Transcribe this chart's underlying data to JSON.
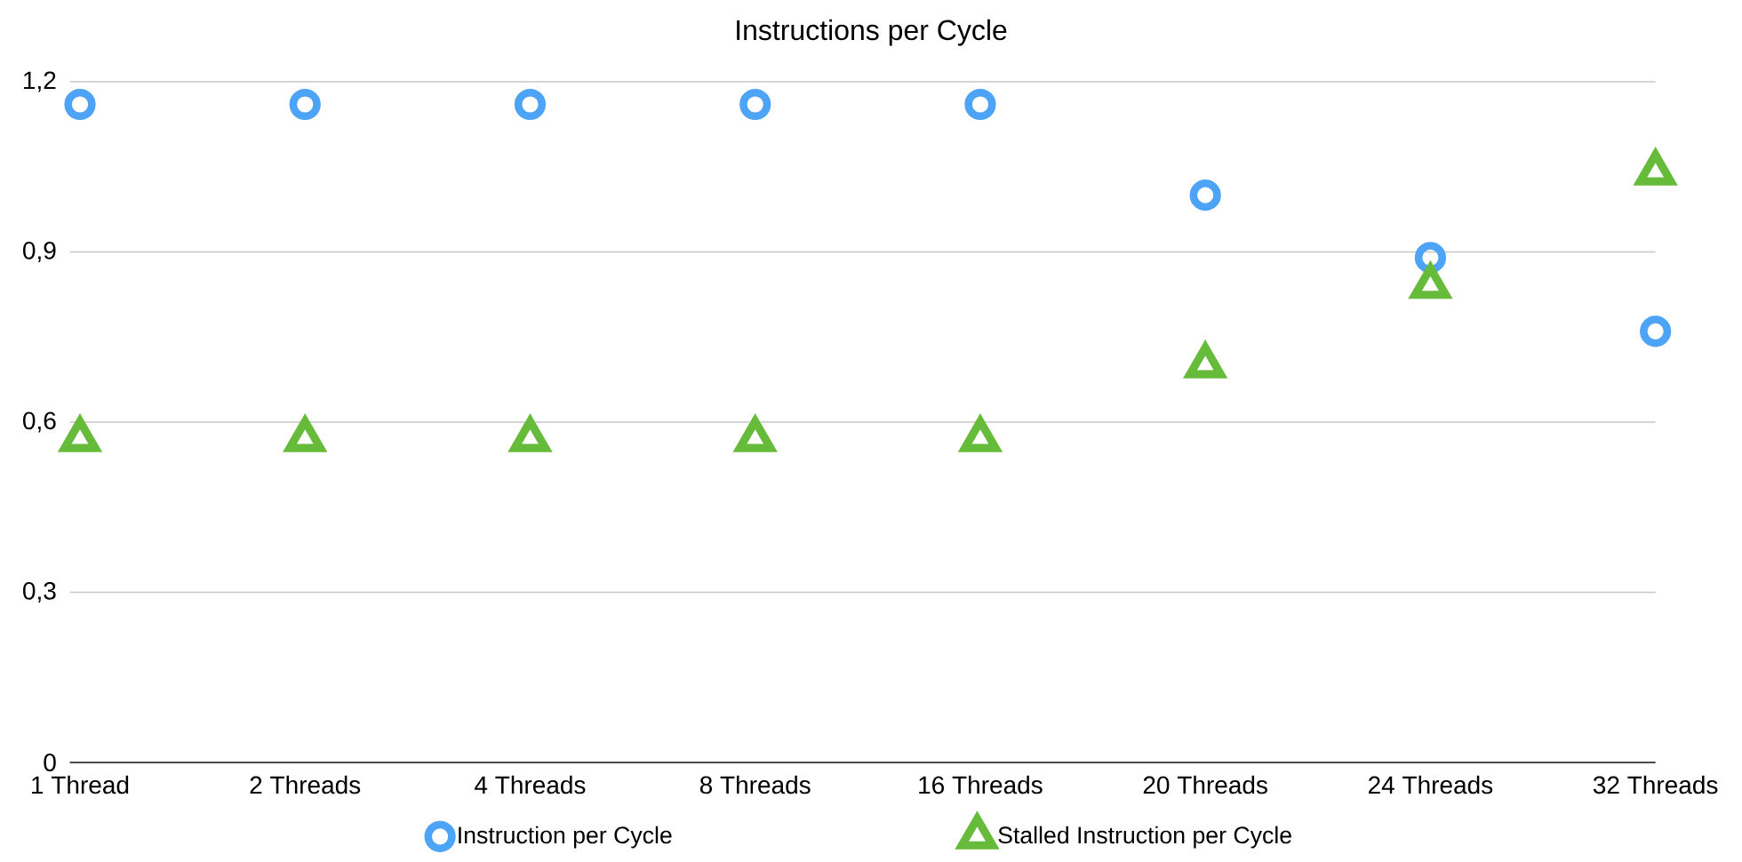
{
  "chart_data": {
    "type": "scatter",
    "title": "Instructions per Cycle",
    "categories": [
      "1 Thread",
      "2 Threads",
      "4 Threads",
      "8 Threads",
      "16 Threads",
      "20 Threads",
      "24 Threads",
      "32 Threads"
    ],
    "series": [
      {
        "name": "Instruction per Cycle",
        "color": "#4da3f5",
        "marker": "circle",
        "values": [
          1.16,
          1.16,
          1.16,
          1.16,
          1.16,
          1.0,
          0.89,
          0.76
        ]
      },
      {
        "name": "Stalled Instruction per Cycle",
        "color": "#66bb3a",
        "marker": "triangle",
        "values": [
          0.57,
          0.57,
          0.57,
          0.57,
          0.57,
          0.7,
          0.84,
          1.04
        ]
      }
    ],
    "ylim": [
      0,
      1.2
    ],
    "yticks": [
      0,
      {
        "value": 0.3,
        "label": "0,3"
      },
      {
        "value": 0.6,
        "label": "0,6"
      },
      {
        "value": 0.9,
        "label": "0,9"
      },
      {
        "value": 1.2,
        "label": "1,2"
      }
    ],
    "grid": "y",
    "legend": "bottom"
  }
}
